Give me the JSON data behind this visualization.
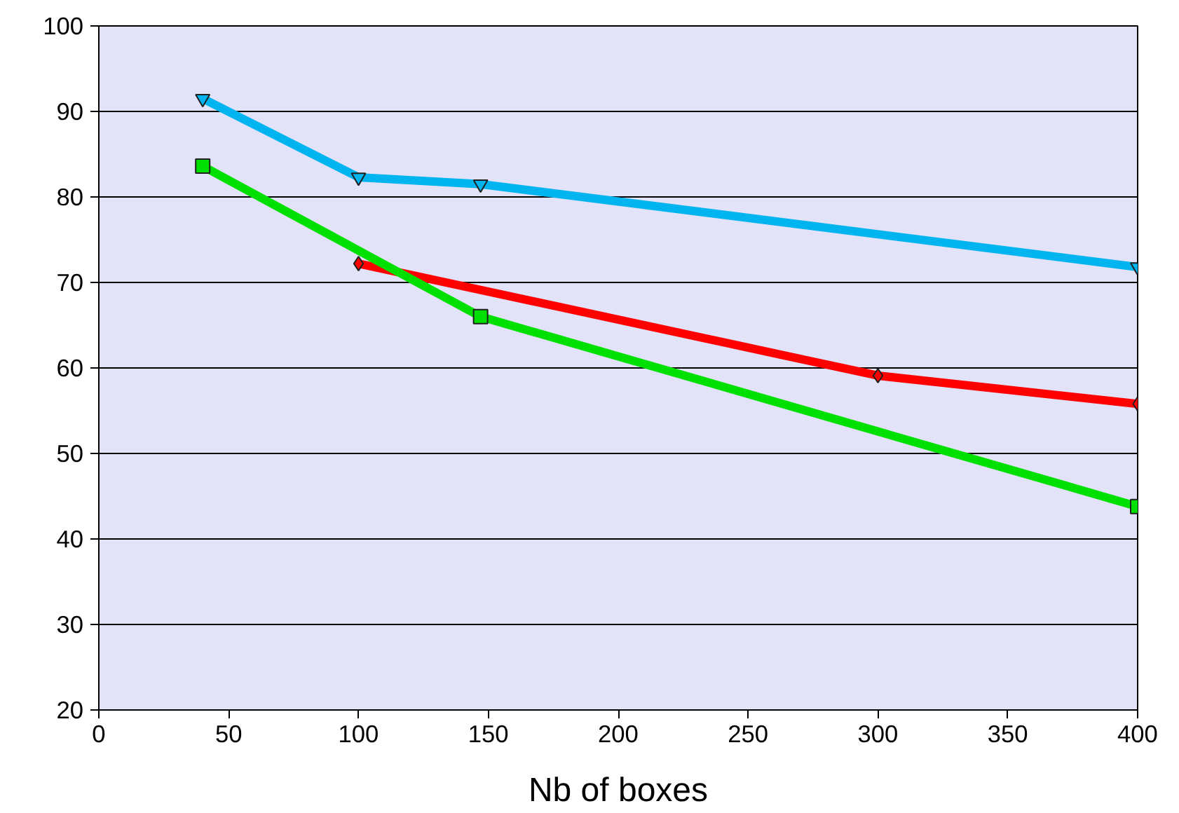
{
  "chart_data": {
    "type": "line",
    "xlabel": "Nb of boxes",
    "xlim": [
      0,
      400
    ],
    "xticks": [
      0,
      50,
      100,
      150,
      200,
      250,
      300,
      350,
      400
    ],
    "ylim": [
      20,
      100
    ],
    "yticks": [
      20,
      30,
      40,
      50,
      60,
      70,
      80,
      90,
      100
    ],
    "grid": "y",
    "line_style": "solid",
    "series": [
      {
        "color": "#00b4f0",
        "marker": "triangle",
        "x": [
          40,
          100,
          147,
          400
        ],
        "values": [
          91.5,
          82.3,
          81.5,
          71.8
        ]
      },
      {
        "color": "#ff0000",
        "marker": "diamond",
        "x": [
          100,
          300,
          400
        ],
        "values": [
          72.2,
          59.1,
          55.8
        ]
      },
      {
        "color": "#00e000",
        "marker": "square",
        "x": [
          40,
          147,
          400
        ],
        "values": [
          83.6,
          66,
          43.8
        ]
      }
    ]
  }
}
